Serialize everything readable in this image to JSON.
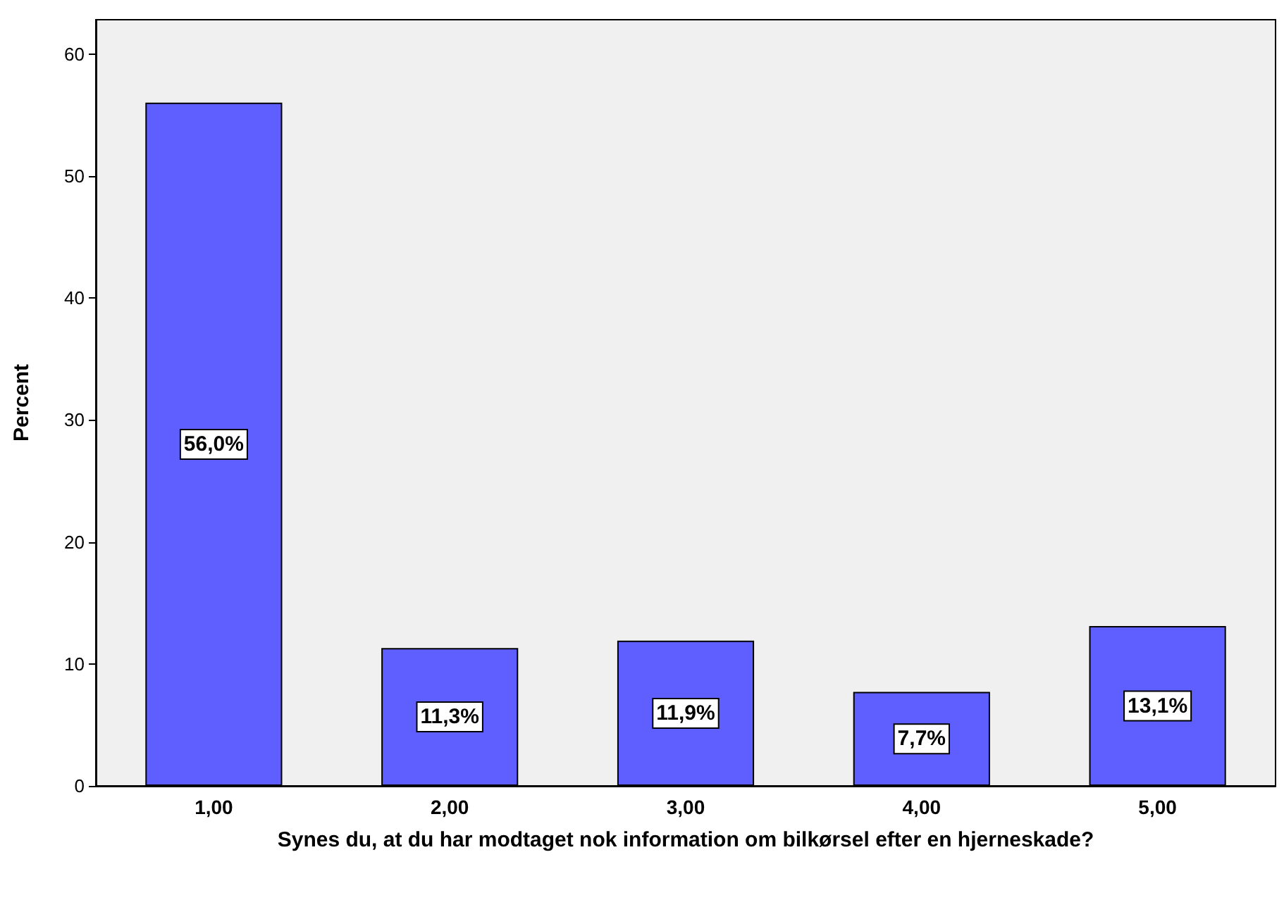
{
  "chart_data": {
    "type": "bar",
    "xlabel": "Synes du, at du har modtaget nok information om bilkørsel efter en hjerneskade?",
    "ylabel": "Percent",
    "categories": [
      "1,00",
      "2,00",
      "3,00",
      "4,00",
      "5,00"
    ],
    "values": [
      56.0,
      11.3,
      11.9,
      7.7,
      13.1
    ],
    "value_labels": [
      "56,0%",
      "11,3%",
      "11,9%",
      "7,7%",
      "13,1%"
    ],
    "color": "#5f5fff",
    "ylim": [
      0,
      62.8
    ],
    "yticks": [
      0,
      10,
      20,
      30,
      40,
      50,
      60
    ],
    "grid": false
  }
}
